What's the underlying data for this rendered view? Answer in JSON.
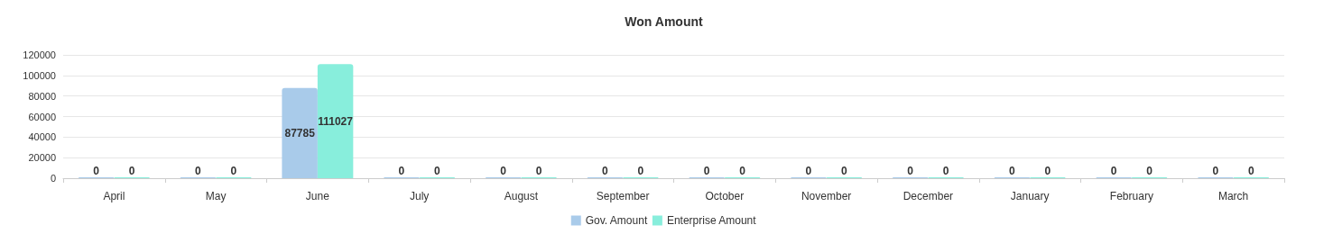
{
  "chart_data": {
    "type": "bar",
    "title": "Won Amount",
    "categories": [
      "April",
      "May",
      "June",
      "July",
      "August",
      "September",
      "October",
      "November",
      "December",
      "January",
      "February",
      "March"
    ],
    "series": [
      {
        "name": "Gov. Amount",
        "color": "#a9cbea",
        "values": [
          0,
          0,
          87785,
          0,
          0,
          0,
          0,
          0,
          0,
          0,
          0,
          0
        ]
      },
      {
        "name": "Enterprise Amount",
        "color": "#88eedc",
        "values": [
          0,
          0,
          111027,
          0,
          0,
          0,
          0,
          0,
          0,
          0,
          0,
          0
        ]
      }
    ],
    "ylim": [
      0,
      120000
    ],
    "yticks": [
      0,
      20000,
      40000,
      60000,
      80000,
      100000,
      120000
    ],
    "grid": "y",
    "legend": "bottom",
    "data_labels": true
  }
}
